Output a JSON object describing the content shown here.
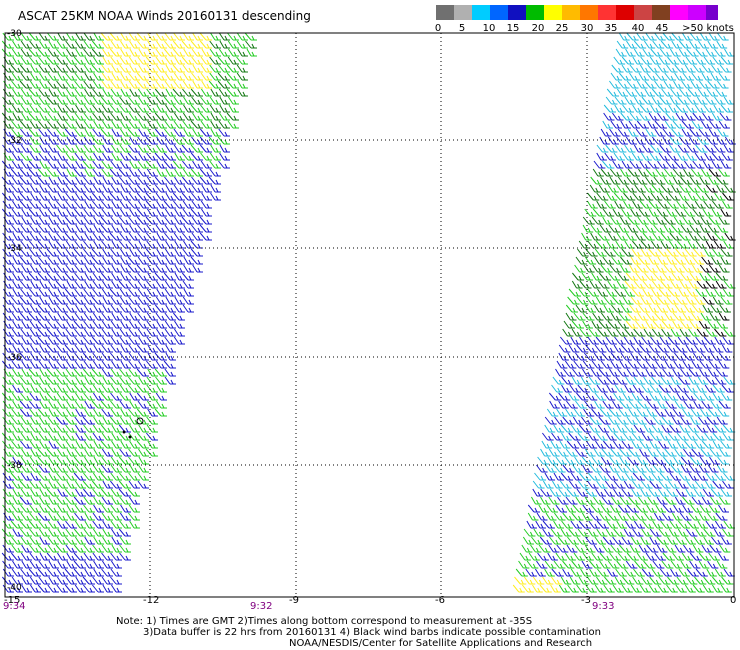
{
  "title": "ASCAT 25KM NOAA Winds 20160131 descending",
  "legend": {
    "colors": [
      "#707070",
      "#b0b0b0",
      "#00ccff",
      "#0066ff",
      "#1010c0",
      "#00bb00",
      "#ffff00",
      "#ffbb00",
      "#ff7700",
      "#ff3333",
      "#dd0000",
      "#cc4444",
      "#804020",
      "#ff00ff",
      "#cc00ff",
      "#7700cc"
    ],
    "labels": [
      "0",
      "5",
      "10",
      "15",
      "20",
      "25",
      "30",
      "35",
      "40",
      "45",
      ">50 knots"
    ]
  },
  "map": {
    "lat_labels": [
      "-30",
      "-32",
      "-34",
      "-36",
      "-38",
      "-40"
    ],
    "lon_labels": [
      "-15",
      "-12",
      "-9",
      "-6",
      "-3",
      "0"
    ],
    "time_labels": [
      "9:34",
      "9:32",
      "9:33"
    ]
  },
  "notes": {
    "line1": "Note: 1) Times are GMT  2)Times along bottom correspond to measurement at -35S",
    "line2": "3)Data buffer is 22 hrs from 20160131  4) Black wind barbs indicate possible contamination",
    "line3": "NOAA/NESDIS/Center for Satellite Applications and Research"
  }
}
